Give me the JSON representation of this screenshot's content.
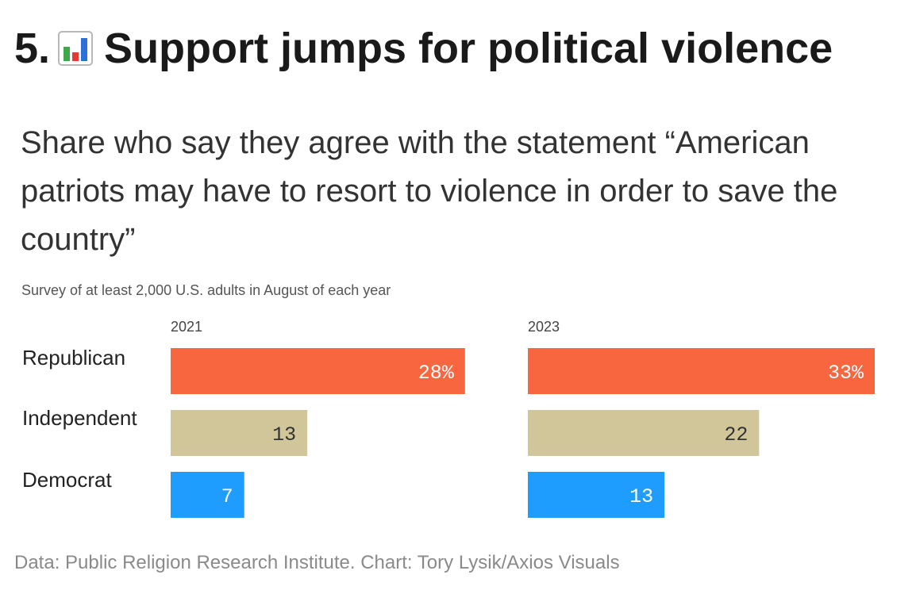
{
  "header": {
    "number": "5.",
    "emoji_icon": "bar-chart-emoji-icon",
    "title": "Support jumps for political violence"
  },
  "chart_data": {
    "type": "bar",
    "orientation": "horizontal",
    "title": "Share who say they agree with the statement “American patriots may have to resort to violence in order to save the country”",
    "subtitle": "Survey of at least 2,000 U.S. adults in August of each year",
    "categories": [
      "Republican",
      "Independent",
      "Democrat"
    ],
    "panels": [
      {
        "name": "2021",
        "values": [
          28,
          13,
          7
        ],
        "labels": [
          "28%",
          "13",
          "7"
        ]
      },
      {
        "name": "2023",
        "values": [
          33,
          22,
          13
        ],
        "labels": [
          "33%",
          "22",
          "13"
        ]
      }
    ],
    "colors": {
      "Republican": "#f7663e",
      "Independent": "#d1c699",
      "Democrat": "#1e9dff"
    },
    "label_colors": {
      "Republican": "#ffffff",
      "Independent": "#333333",
      "Democrat": "#ffffff"
    },
    "xlim": [
      0,
      33
    ],
    "grid": false,
    "legend": "none"
  },
  "footer": {
    "source": "Data: Public Religion Research Institute. Chart: Tory Lysik/Axios Visuals"
  }
}
